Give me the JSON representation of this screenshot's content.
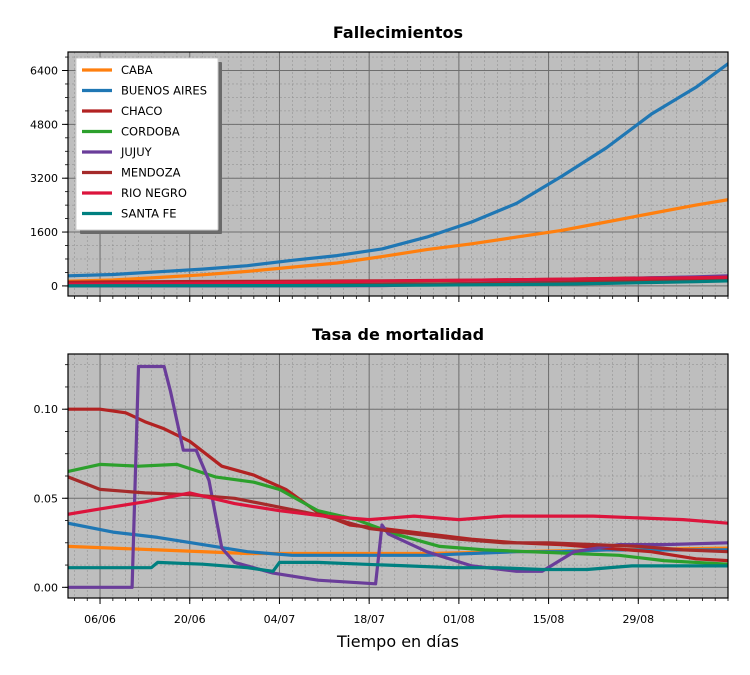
{
  "chart_data": [
    {
      "type": "line",
      "title": "Fallecimientos",
      "xlabel": "",
      "ylabel": "",
      "x_ticks": [
        "06/06",
        "20/06",
        "04/07",
        "18/07",
        "01/08",
        "15/08",
        "29/08"
      ],
      "y_ticks": [
        "0",
        "1600",
        "3200",
        "4800",
        "6400"
      ],
      "ylim": [
        -300,
        6950
      ],
      "legend_position": "top-left",
      "grid": true,
      "x": [
        "01/06",
        "08/06",
        "15/06",
        "22/06",
        "29/06",
        "06/07",
        "13/07",
        "20/07",
        "27/07",
        "03/08",
        "10/08",
        "17/08",
        "24/08",
        "31/08",
        "07/09",
        "12/09"
      ],
      "series": [
        {
          "name": "CABA",
          "color": "#ff7f0e",
          "values": [
            140,
            175,
            250,
            330,
            430,
            560,
            680,
            870,
            1080,
            1250,
            1450,
            1650,
            1900,
            2150,
            2400,
            2560
          ]
        },
        {
          "name": "BUENOS AIRES",
          "color": "#1f77b4",
          "values": [
            300,
            340,
            420,
            500,
            600,
            760,
            900,
            1100,
            1450,
            1900,
            2450,
            3250,
            4100,
            5100,
            5900,
            6600
          ]
        },
        {
          "name": "CHACO",
          "color": "#b22222",
          "values": [
            110,
            120,
            125,
            130,
            135,
            140,
            145,
            150,
            160,
            170,
            185,
            200,
            220,
            240,
            260,
            280
          ]
        },
        {
          "name": "CORDOBA",
          "color": "#2ca02c",
          "values": [
            35,
            36,
            37,
            38,
            40,
            42,
            45,
            50,
            58,
            68,
            80,
            95,
            120,
            150,
            180,
            210
          ]
        },
        {
          "name": "JUJUY",
          "color": "#6a3d9a",
          "values": [
            0,
            1,
            1,
            1,
            1,
            2,
            4,
            10,
            40,
            70,
            100,
            140,
            200,
            240,
            270,
            300
          ]
        },
        {
          "name": "MENDOZA",
          "color": "#a52a2a",
          "values": [
            15,
            17,
            20,
            22,
            25,
            30,
            35,
            42,
            52,
            65,
            80,
            100,
            130,
            160,
            200,
            240
          ]
        },
        {
          "name": "RIO NEGRO",
          "color": "#dc143c",
          "values": [
            50,
            60,
            70,
            80,
            95,
            110,
            125,
            140,
            155,
            170,
            185,
            200,
            215,
            230,
            245,
            260
          ]
        },
        {
          "name": "SANTA FE",
          "color": "#008080",
          "values": [
            4,
            5,
            6,
            7,
            8,
            10,
            13,
            18,
            25,
            32,
            42,
            55,
            75,
            100,
            125,
            150
          ]
        }
      ]
    },
    {
      "type": "line",
      "title": "Tasa de mortalidad",
      "xlabel": "Tiempo en días",
      "ylabel": "",
      "x_ticks": [
        "06/06",
        "20/06",
        "04/07",
        "18/07",
        "01/08",
        "15/08",
        "29/08"
      ],
      "y_ticks": [
        "0.00",
        "0.05",
        "0.10"
      ],
      "ylim": [
        -0.006,
        0.131
      ],
      "grid": true,
      "series": [
        {
          "name": "CABA",
          "color": "#ff7f0e",
          "x": [
            "01/06",
            "15/06",
            "29/06",
            "13/07",
            "27/07",
            "10/08",
            "24/08",
            "12/09"
          ],
          "values": [
            0.023,
            0.021,
            0.019,
            0.019,
            0.019,
            0.02,
            0.021,
            0.022
          ]
        },
        {
          "name": "BUENOS AIRES",
          "color": "#1f77b4",
          "x": [
            "01/06",
            "08/06",
            "15/06",
            "22/06",
            "29/06",
            "06/07",
            "13/07",
            "20/07",
            "27/07",
            "03/08",
            "10/08",
            "17/08",
            "24/08",
            "31/08",
            "12/09"
          ],
          "values": [
            0.036,
            0.031,
            0.028,
            0.024,
            0.02,
            0.018,
            0.018,
            0.018,
            0.018,
            0.019,
            0.02,
            0.02,
            0.021,
            0.021,
            0.021
          ]
        },
        {
          "name": "CHACO",
          "color": "#b22222",
          "x": [
            "01/06",
            "06/06",
            "10/06",
            "13/06",
            "16/06",
            "20/06",
            "25/06",
            "30/06",
            "05/07",
            "10/07",
            "15/07",
            "20/07",
            "27/07",
            "03/08",
            "10/08",
            "17/08",
            "24/08",
            "31/08",
            "07/09",
            "12/09"
          ],
          "values": [
            0.1,
            0.1,
            0.098,
            0.093,
            0.089,
            0.082,
            0.068,
            0.063,
            0.055,
            0.042,
            0.035,
            0.033,
            0.03,
            0.027,
            0.025,
            0.024,
            0.022,
            0.02,
            0.016,
            0.015
          ]
        },
        {
          "name": "CORDOBA",
          "color": "#2ca02c",
          "x": [
            "01/06",
            "06/06",
            "12/06",
            "18/06",
            "24/06",
            "30/06",
            "04/07",
            "10/07",
            "16/07",
            "22/07",
            "29/07",
            "05/08",
            "12/08",
            "19/08",
            "26/08",
            "02/09",
            "12/09"
          ],
          "values": [
            0.065,
            0.069,
            0.068,
            0.069,
            0.062,
            0.059,
            0.055,
            0.043,
            0.038,
            0.03,
            0.023,
            0.021,
            0.02,
            0.019,
            0.018,
            0.015,
            0.013
          ]
        },
        {
          "name": "JUJUY",
          "color": "#6a3d9a",
          "x": [
            "01/06",
            "11/06",
            "12/06",
            "16/06",
            "17/06",
            "19/06",
            "21/06",
            "23/06",
            "25/06",
            "27/06",
            "03/07",
            "10/07",
            "19/07",
            "20/07",
            "21/07",
            "27/07",
            "03/08",
            "10/08",
            "14/08",
            "19/08",
            "26/08",
            "02/09",
            "12/09"
          ],
          "values": [
            0,
            0,
            0.124,
            0.124,
            0.11,
            0.077,
            0.077,
            0.06,
            0.022,
            0.014,
            0.008,
            0.004,
            0.002,
            0.035,
            0.03,
            0.02,
            0.012,
            0.009,
            0.009,
            0.02,
            0.024,
            0.024,
            0.025
          ]
        },
        {
          "name": "MENDOZA",
          "color": "#a52a2a",
          "x": [
            "01/06",
            "06/06",
            "13/06",
            "20/06",
            "27/06",
            "04/07",
            "11/07",
            "18/07",
            "25/07",
            "01/08",
            "08/08",
            "15/08",
            "22/08",
            "29/08",
            "05/09",
            "12/09"
          ],
          "values": [
            0.062,
            0.055,
            0.053,
            0.052,
            0.05,
            0.045,
            0.04,
            0.033,
            0.03,
            0.027,
            0.025,
            0.025,
            0.024,
            0.023,
            0.021,
            0.02
          ]
        },
        {
          "name": "RIO NEGRO",
          "color": "#dc143c",
          "x": [
            "01/06",
            "06/06",
            "13/06",
            "20/06",
            "27/06",
            "04/07",
            "11/07",
            "18/07",
            "25/07",
            "01/08",
            "08/08",
            "15/08",
            "22/08",
            "29/08",
            "05/09",
            "12/09"
          ],
          "values": [
            0.041,
            0.044,
            0.048,
            0.053,
            0.047,
            0.043,
            0.04,
            0.038,
            0.04,
            0.038,
            0.04,
            0.04,
            0.04,
            0.039,
            0.038,
            0.036
          ]
        },
        {
          "name": "SANTA FE",
          "color": "#008080",
          "x": [
            "01/06",
            "08/06",
            "14/06",
            "15/06",
            "22/06",
            "29/06",
            "03/07",
            "04/07",
            "10/07",
            "17/07",
            "24/07",
            "31/07",
            "07/08",
            "14/08",
            "21/08",
            "28/08",
            "04/09",
            "12/09"
          ],
          "values": [
            0.011,
            0.011,
            0.011,
            0.014,
            0.013,
            0.011,
            0.009,
            0.014,
            0.014,
            0.013,
            0.012,
            0.011,
            0.011,
            0.01,
            0.01,
            0.012,
            0.012,
            0.012
          ]
        }
      ]
    }
  ]
}
